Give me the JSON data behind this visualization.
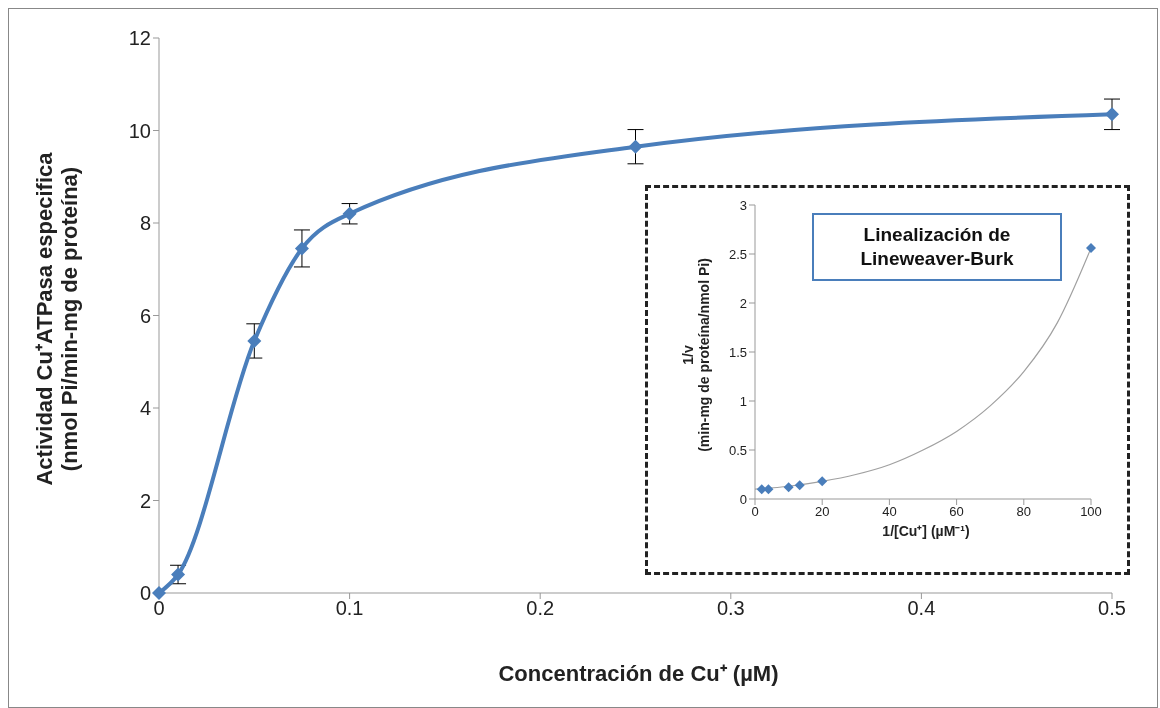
{
  "chart_data": [
    {
      "type": "line",
      "xlabel": "Concentración de Cu⁺ (µM)",
      "ylabel": "Actividad Cu⁺ATPasa especifica\n(nmol Pi/min-mg de proteína)",
      "x": [
        0,
        0.01,
        0.05,
        0.075,
        0.1,
        0.25,
        0.5
      ],
      "series": [
        {
          "color": "#4a7ebb",
          "values": [
            0,
            0.4,
            5.45,
            7.45,
            8.2,
            9.65,
            10.35
          ],
          "errors": [
            null,
            0.2,
            0.37,
            0.4,
            0.22,
            0.37,
            0.33
          ]
        }
      ],
      "xlim": [
        0,
        0.5
      ],
      "xticks": [
        0,
        0.1,
        0.2,
        0.3,
        0.4,
        0.5
      ],
      "ylim": [
        0,
        12
      ],
      "yticks": [
        0,
        2,
        4,
        6,
        8,
        10,
        12
      ],
      "grid": false,
      "marker": "diamond",
      "line_style": "solid"
    },
    {
      "type": "scatter",
      "title": "Linealización de\nLineweaver-Burk",
      "xlabel": "1/[Cu⁺] (µM⁻¹)",
      "ylabel": "1/v\n(min-mg de proteína/nmol Pi)",
      "series": [
        {
          "marker": "diamond",
          "color": "#4a7ebb",
          "x": [
            2,
            4,
            10,
            13.3,
            20,
            100
          ],
          "values": [
            0.1,
            0.1,
            0.12,
            0.14,
            0.18,
            2.56
          ]
        },
        {
          "type": "line",
          "marker": "none",
          "color": "#a0a0a0",
          "x": [
            0,
            10,
            20,
            30,
            40,
            50,
            60,
            70,
            80,
            90,
            100
          ],
          "values": [
            0.1,
            0.13,
            0.18,
            0.25,
            0.35,
            0.5,
            0.69,
            0.95,
            1.3,
            1.8,
            2.56
          ]
        }
      ],
      "xlim": [
        0,
        100
      ],
      "xticks": [
        0,
        20,
        40,
        60,
        80,
        100
      ],
      "ylim": [
        0,
        3
      ],
      "yticks": [
        0,
        0.5,
        1,
        1.5,
        2,
        2.5,
        3
      ],
      "grid": false
    }
  ]
}
